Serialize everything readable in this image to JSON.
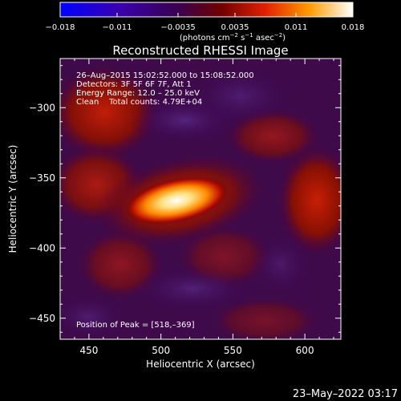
{
  "colorbar": {
    "tick_labels": [
      "−0.018",
      "−0.011",
      "−0.0035",
      "0.0035",
      "0.011",
      "0.018"
    ],
    "tick_values": [
      -0.018,
      -0.011,
      -0.0035,
      0.0035,
      0.011,
      0.018
    ],
    "range": [
      -0.018,
      0.018
    ],
    "unit_main": "(photons cm",
    "unit_exp1": "−2",
    "unit_mid": " s",
    "unit_exp2": "−1",
    "unit_mid2": " asec",
    "unit_exp3": "−2",
    "unit_end": ")"
  },
  "chart_data": {
    "type": "heatmap",
    "title": "Reconstructed RHESSI Image",
    "xlabel": "Heliocentric X (arcsec)",
    "ylabel": "Heliocentric Y (arcsec)",
    "xlim": [
      430,
      625
    ],
    "ylim": [
      -465,
      -265
    ],
    "xticks": [
      450,
      500,
      550,
      600
    ],
    "yticks": [
      -450,
      -400,
      -350,
      -300
    ],
    "xtick_labels": [
      "450",
      "500",
      "550",
      "600"
    ],
    "ytick_labels": [
      "−450",
      "−400",
      "−350",
      "−300"
    ],
    "annotations": [
      "26–Aug–2015 15:02:52.000 to 15:08:52.000",
      "Detectors: 3F 5F 6F 7F, Att 1",
      "Energy Range: 12.0 – 25.0 keV",
      "Clean    Total counts: 4.79E+04"
    ],
    "peak_label": "Position of Peak = [518,–369]",
    "peak": [
      518,
      -369
    ],
    "colormap": [
      "#0000ff",
      "#2a005a",
      "#55005a",
      "#a01010",
      "#ff6a00",
      "#ffd040",
      "#ffffff"
    ]
  },
  "footer": {
    "timestamp": "23–May–2022 03:17"
  }
}
